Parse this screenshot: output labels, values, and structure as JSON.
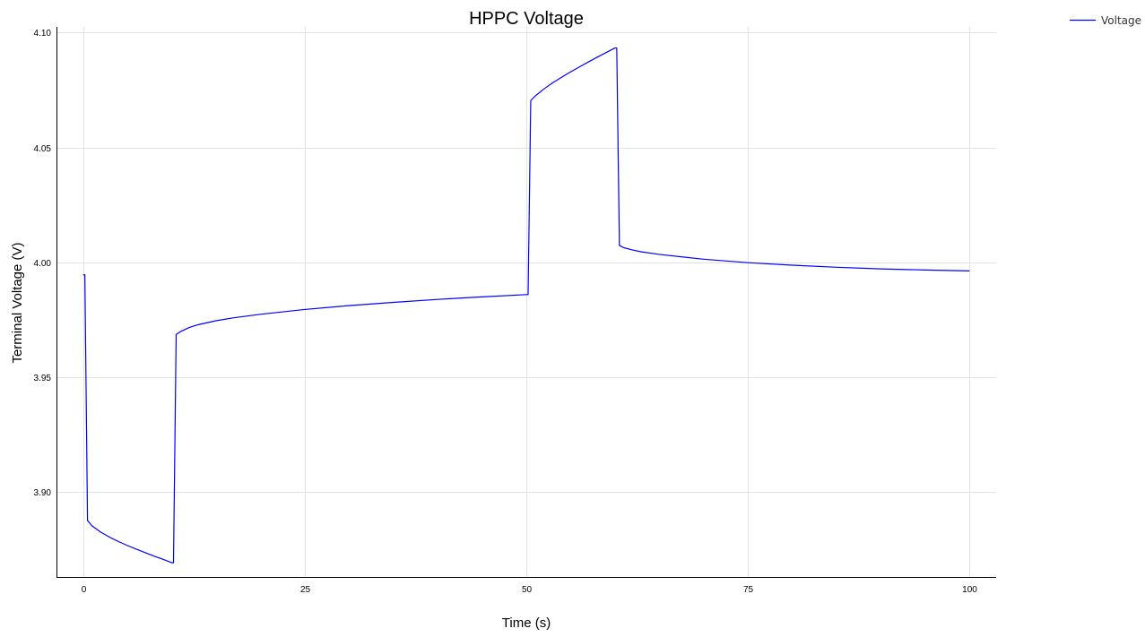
{
  "chart_data": {
    "type": "line",
    "title": "HPPC Voltage",
    "xlabel": "Time (s)",
    "ylabel": "Terminal Voltage (V)",
    "xlim": [
      -3,
      103
    ],
    "ylim": [
      3.8625,
      4.1025
    ],
    "xticks": [
      0,
      25,
      50,
      75,
      100
    ],
    "xtick_labels": [
      "0",
      "25",
      "50",
      "75",
      "100"
    ],
    "yticks": [
      3.9,
      3.95,
      4.0,
      4.05,
      4.1
    ],
    "ytick_labels": [
      "3.90",
      "3.95",
      "4.00",
      "4.05",
      "4.10"
    ],
    "grid": true,
    "legend_position": "top-right outside",
    "series": [
      {
        "name": "Voltage",
        "color": "#0000ff",
        "x": [
          0,
          0.2,
          0.5,
          1,
          2,
          3,
          4,
          5,
          6,
          7,
          8,
          9,
          10,
          10.2,
          10.5,
          11,
          12,
          13,
          15,
          17,
          20,
          25,
          30,
          35,
          40,
          45,
          50,
          50.2,
          50.5,
          51,
          52,
          53,
          54,
          55,
          56,
          57,
          58,
          59,
          60,
          60.2,
          60.5,
          61,
          62,
          63,
          65,
          70,
          75,
          80,
          85,
          90,
          95,
          100
        ],
        "y": [
          3.9945,
          3.9945,
          3.8875,
          3.8852,
          3.8824,
          3.8802,
          3.8783,
          3.8766,
          3.875,
          3.8735,
          3.872,
          3.8706,
          3.8691,
          3.8691,
          3.9685,
          3.9698,
          3.9716,
          3.9728,
          3.9745,
          3.9758,
          3.9773,
          3.9794,
          3.9811,
          3.9825,
          3.9838,
          3.9849,
          3.9859,
          3.9859,
          4.0704,
          4.0724,
          4.0755,
          4.0782,
          4.0806,
          4.0829,
          4.0851,
          4.0872,
          4.0893,
          4.0913,
          4.0933,
          4.0933,
          4.0073,
          4.0063,
          4.0053,
          4.0045,
          4.0034,
          4.0013,
          3.9998,
          3.9987,
          3.9978,
          3.9971,
          3.9966,
          3.9962
        ]
      }
    ]
  }
}
